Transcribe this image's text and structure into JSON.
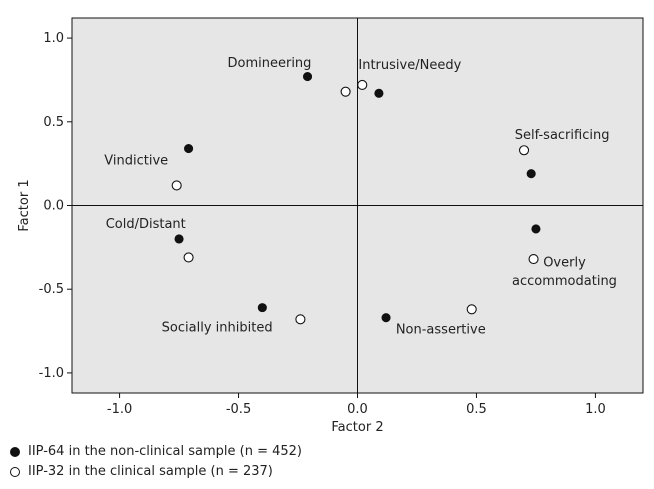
{
  "chart_data": {
    "type": "scatter",
    "title": "",
    "xlabel": "Factor 2",
    "ylabel": "Factor 1",
    "xlim": [
      -1.2,
      1.2
    ],
    "ylim": [
      -1.12,
      1.12
    ],
    "xticks": [
      -1.0,
      -0.5,
      0.0,
      0.5,
      1.0
    ],
    "xtick_labels": [
      "-1.0",
      "-0.5",
      "0.0",
      "0.5",
      "1.0"
    ],
    "yticks": [
      1.0,
      0.5,
      0.0,
      -0.5,
      -1.0
    ],
    "ytick_labels": [
      "1.0",
      "0.5",
      "0.0",
      "-0.5",
      "-1.0"
    ],
    "series": [
      {
        "name": "IIP-64 in the non-clinical sample (n = 452)",
        "marker": "filled",
        "points": [
          {
            "x": -0.21,
            "y": 0.77
          },
          {
            "x": 0.09,
            "y": 0.67
          },
          {
            "x": -0.71,
            "y": 0.34
          },
          {
            "x": 0.73,
            "y": 0.19
          },
          {
            "x": -0.75,
            "y": -0.2
          },
          {
            "x": 0.75,
            "y": -0.14
          },
          {
            "x": -0.4,
            "y": -0.61
          },
          {
            "x": 0.12,
            "y": -0.67
          }
        ]
      },
      {
        "name": "IIP-32 in the clinical sample (n = 237)",
        "marker": "open",
        "points": [
          {
            "x": -0.05,
            "y": 0.68
          },
          {
            "x": 0.02,
            "y": 0.72
          },
          {
            "x": -0.76,
            "y": 0.12
          },
          {
            "x": 0.7,
            "y": 0.33
          },
          {
            "x": -0.71,
            "y": -0.31
          },
          {
            "x": 0.74,
            "y": -0.32
          },
          {
            "x": -0.24,
            "y": -0.68
          },
          {
            "x": 0.48,
            "y": -0.62
          }
        ]
      }
    ],
    "annotations": [
      {
        "text": "Domineering",
        "x": -0.37,
        "y": 0.85
      },
      {
        "text": "Intrusive/Needy",
        "x": 0.22,
        "y": 0.84
      },
      {
        "text": "Vindictive",
        "x": -0.93,
        "y": 0.27
      },
      {
        "text": "Self-sacrificing",
        "x": 0.86,
        "y": 0.42
      },
      {
        "text": "Cold/Distant",
        "x": -0.89,
        "y": -0.11
      },
      {
        "text": "Overly",
        "x": 0.87,
        "y": -0.34
      },
      {
        "text": "accommodating",
        "x": 0.87,
        "y": -0.45
      },
      {
        "text": "Socially inhibited",
        "x": -0.59,
        "y": -0.73
      },
      {
        "text": "Non-assertive",
        "x": 0.35,
        "y": -0.74
      }
    ]
  },
  "legend": {
    "items": [
      {
        "label": "IIP-64 in the non-clinical sample (n = 452)",
        "marker": "filled"
      },
      {
        "label": "IIP-32 in the clinical sample (n = 237)",
        "marker": "open"
      }
    ]
  },
  "colors": {
    "plot_background": "#e6e6e6",
    "axis": "#111111",
    "marker": "#111111"
  }
}
